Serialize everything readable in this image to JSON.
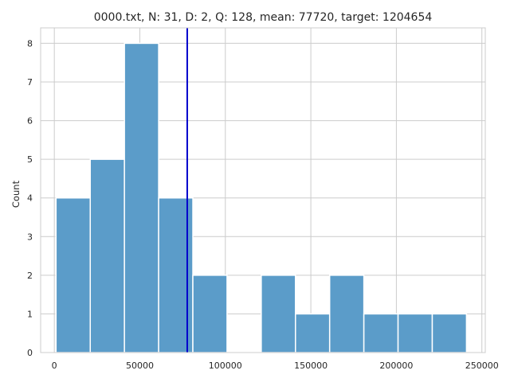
{
  "chart_data": {
    "type": "bar",
    "title": "0000.txt, N: 31, D: 2, Q: 128, mean: 77720, target: 1204654",
    "xlabel": "",
    "ylabel": "Count",
    "xlim": [
      -8000,
      252000
    ],
    "ylim": [
      0,
      8.4
    ],
    "x_ticks": [
      0,
      50000,
      100000,
      150000,
      200000,
      250000
    ],
    "y_ticks": [
      0,
      1,
      2,
      3,
      4,
      5,
      6,
      7,
      8
    ],
    "grid": true,
    "legend": "none",
    "bins": [
      {
        "start": 1000,
        "end": 21000,
        "count": 4
      },
      {
        "start": 21000,
        "end": 41000,
        "count": 5
      },
      {
        "start": 41000,
        "end": 61000,
        "count": 8
      },
      {
        "start": 61000,
        "end": 81000,
        "count": 4
      },
      {
        "start": 81000,
        "end": 101000,
        "count": 2
      },
      {
        "start": 101000,
        "end": 121000,
        "count": 0
      },
      {
        "start": 121000,
        "end": 141000,
        "count": 2
      },
      {
        "start": 141000,
        "end": 161000,
        "count": 1
      },
      {
        "start": 161000,
        "end": 181000,
        "count": 2
      },
      {
        "start": 181000,
        "end": 201000,
        "count": 1
      },
      {
        "start": 201000,
        "end": 221000,
        "count": 1
      },
      {
        "start": 221000,
        "end": 241000,
        "count": 1
      }
    ],
    "mean_line": {
      "x": 77720,
      "color": "#0000cc"
    },
    "colors": {
      "bar_fill": "#5b9cc9",
      "bar_edge": "#ffffff",
      "grid": "#cccccc",
      "axes_edge": "#cccccc",
      "text": "#262626"
    }
  }
}
